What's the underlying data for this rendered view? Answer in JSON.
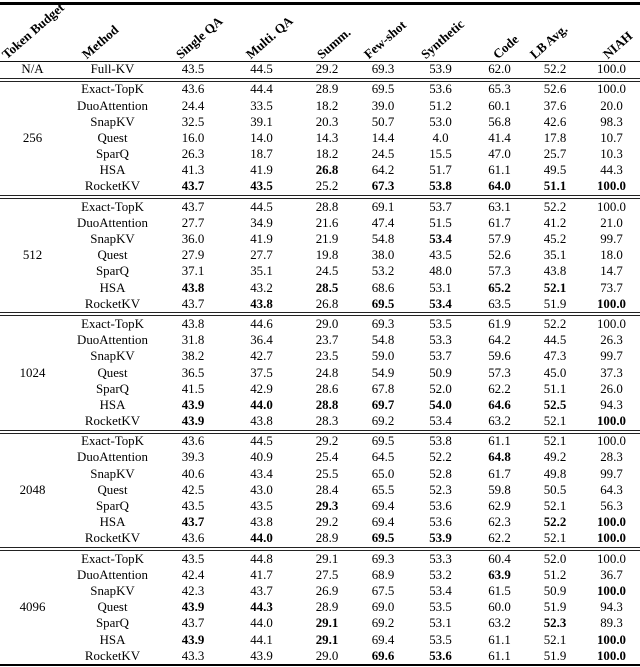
{
  "table": {
    "title": "KV-cache method benchmark results by token budget",
    "columns": [
      "Token Budget",
      "Method",
      "Single QA",
      "Multi. QA",
      "Summ.",
      "Few-shot",
      "Synthetic",
      "Code",
      "LB Avg.",
      "NIAH"
    ],
    "colors": {
      "text": "#000000",
      "background": "#ffffff",
      "rule": "#000000"
    },
    "groups": [
      {
        "budget": "N/A",
        "rows": [
          {
            "method": "Full-KV",
            "values": [
              "43.5",
              "44.5",
              "29.2",
              "69.3",
              "53.9",
              "62.0",
              "52.2",
              "100.0"
            ],
            "bold": [
              0,
              0,
              0,
              0,
              0,
              0,
              0,
              0
            ]
          }
        ]
      },
      {
        "budget": "256",
        "rows": [
          {
            "method": "Exact-TopK",
            "values": [
              "43.6",
              "44.4",
              "28.9",
              "69.5",
              "53.6",
              "65.3",
              "52.6",
              "100.0"
            ],
            "bold": [
              0,
              0,
              0,
              0,
              0,
              0,
              0,
              0
            ]
          },
          {
            "method": "DuoAttention",
            "values": [
              "24.4",
              "33.5",
              "18.2",
              "39.0",
              "51.2",
              "60.1",
              "37.6",
              "20.0"
            ],
            "bold": [
              0,
              0,
              0,
              0,
              0,
              0,
              0,
              0
            ]
          },
          {
            "method": "SnapKV",
            "values": [
              "32.5",
              "39.1",
              "20.3",
              "50.7",
              "53.0",
              "56.8",
              "42.6",
              "98.3"
            ],
            "bold": [
              0,
              0,
              0,
              0,
              0,
              0,
              0,
              0
            ]
          },
          {
            "method": "Quest",
            "values": [
              "16.0",
              "14.0",
              "14.3",
              "14.4",
              "4.0",
              "41.4",
              "17.8",
              "10.7"
            ],
            "bold": [
              0,
              0,
              0,
              0,
              0,
              0,
              0,
              0
            ]
          },
          {
            "method": "SparQ",
            "values": [
              "26.3",
              "18.7",
              "18.2",
              "24.5",
              "15.5",
              "47.0",
              "25.7",
              "10.3"
            ],
            "bold": [
              0,
              0,
              0,
              0,
              0,
              0,
              0,
              0
            ]
          },
          {
            "method": "HSA",
            "values": [
              "41.3",
              "41.9",
              "26.8",
              "64.2",
              "51.7",
              "61.1",
              "49.5",
              "44.3"
            ],
            "bold": [
              0,
              0,
              1,
              0,
              0,
              0,
              0,
              0
            ]
          },
          {
            "method": "RocketKV",
            "values": [
              "43.7",
              "43.5",
              "25.2",
              "67.3",
              "53.8",
              "64.0",
              "51.1",
              "100.0"
            ],
            "bold": [
              1,
              1,
              0,
              1,
              1,
              1,
              1,
              1
            ]
          }
        ]
      },
      {
        "budget": "512",
        "rows": [
          {
            "method": "Exact-TopK",
            "values": [
              "43.7",
              "44.5",
              "28.8",
              "69.1",
              "53.7",
              "63.1",
              "52.2",
              "100.0"
            ],
            "bold": [
              0,
              0,
              0,
              0,
              0,
              0,
              0,
              0
            ]
          },
          {
            "method": "DuoAttention",
            "values": [
              "27.7",
              "34.9",
              "21.6",
              "47.4",
              "51.5",
              "61.7",
              "41.2",
              "21.0"
            ],
            "bold": [
              0,
              0,
              0,
              0,
              0,
              0,
              0,
              0
            ]
          },
          {
            "method": "SnapKV",
            "values": [
              "36.0",
              "41.9",
              "21.9",
              "54.8",
              "53.4",
              "57.9",
              "45.2",
              "99.7"
            ],
            "bold": [
              0,
              0,
              0,
              0,
              1,
              0,
              0,
              0
            ]
          },
          {
            "method": "Quest",
            "values": [
              "27.9",
              "27.7",
              "19.8",
              "38.0",
              "43.5",
              "52.6",
              "35.1",
              "18.0"
            ],
            "bold": [
              0,
              0,
              0,
              0,
              0,
              0,
              0,
              0
            ]
          },
          {
            "method": "SparQ",
            "values": [
              "37.1",
              "35.1",
              "24.5",
              "53.2",
              "48.0",
              "57.3",
              "43.8",
              "14.7"
            ],
            "bold": [
              0,
              0,
              0,
              0,
              0,
              0,
              0,
              0
            ]
          },
          {
            "method": "HSA",
            "values": [
              "43.8",
              "43.2",
              "28.5",
              "68.6",
              "53.1",
              "65.2",
              "52.1",
              "73.7"
            ],
            "bold": [
              1,
              0,
              1,
              0,
              0,
              1,
              1,
              0
            ]
          },
          {
            "method": "RocketKV",
            "values": [
              "43.7",
              "43.8",
              "26.8",
              "69.5",
              "53.4",
              "63.5",
              "51.9",
              "100.0"
            ],
            "bold": [
              0,
              1,
              0,
              1,
              1,
              0,
              0,
              1
            ]
          }
        ]
      },
      {
        "budget": "1024",
        "rows": [
          {
            "method": "Exact-TopK",
            "values": [
              "43.8",
              "44.6",
              "29.0",
              "69.3",
              "53.5",
              "61.9",
              "52.2",
              "100.0"
            ],
            "bold": [
              0,
              0,
              0,
              0,
              0,
              0,
              0,
              0
            ]
          },
          {
            "method": "DuoAttention",
            "values": [
              "31.8",
              "36.4",
              "23.7",
              "54.8",
              "53.3",
              "64.2",
              "44.5",
              "26.3"
            ],
            "bold": [
              0,
              0,
              0,
              0,
              0,
              0,
              0,
              0
            ]
          },
          {
            "method": "SnapKV",
            "values": [
              "38.2",
              "42.7",
              "23.5",
              "59.0",
              "53.7",
              "59.6",
              "47.3",
              "99.7"
            ],
            "bold": [
              0,
              0,
              0,
              0,
              0,
              0,
              0,
              0
            ]
          },
          {
            "method": "Quest",
            "values": [
              "36.5",
              "37.5",
              "24.8",
              "54.9",
              "50.9",
              "57.3",
              "45.0",
              "37.3"
            ],
            "bold": [
              0,
              0,
              0,
              0,
              0,
              0,
              0,
              0
            ]
          },
          {
            "method": "SparQ",
            "values": [
              "41.5",
              "42.9",
              "28.6",
              "67.8",
              "52.0",
              "62.2",
              "51.1",
              "26.0"
            ],
            "bold": [
              0,
              0,
              0,
              0,
              0,
              0,
              0,
              0
            ]
          },
          {
            "method": "HSA",
            "values": [
              "43.9",
              "44.0",
              "28.8",
              "69.7",
              "54.0",
              "64.6",
              "52.5",
              "94.3"
            ],
            "bold": [
              1,
              1,
              1,
              1,
              1,
              1,
              1,
              0
            ]
          },
          {
            "method": "RocketKV",
            "values": [
              "43.9",
              "43.8",
              "28.3",
              "69.2",
              "53.4",
              "63.2",
              "52.1",
              "100.0"
            ],
            "bold": [
              1,
              0,
              0,
              0,
              0,
              0,
              0,
              1
            ]
          }
        ]
      },
      {
        "budget": "2048",
        "rows": [
          {
            "method": "Exact-TopK",
            "values": [
              "43.6",
              "44.5",
              "29.2",
              "69.5",
              "53.8",
              "61.1",
              "52.1",
              "100.0"
            ],
            "bold": [
              0,
              0,
              0,
              0,
              0,
              0,
              0,
              0
            ]
          },
          {
            "method": "DuoAttention",
            "values": [
              "39.3",
              "40.9",
              "25.4",
              "64.5",
              "52.2",
              "64.8",
              "49.2",
              "28.3"
            ],
            "bold": [
              0,
              0,
              0,
              0,
              0,
              1,
              0,
              0
            ]
          },
          {
            "method": "SnapKV",
            "values": [
              "40.6",
              "43.4",
              "25.5",
              "65.0",
              "52.8",
              "61.7",
              "49.8",
              "99.7"
            ],
            "bold": [
              0,
              0,
              0,
              0,
              0,
              0,
              0,
              0
            ]
          },
          {
            "method": "Quest",
            "values": [
              "42.5",
              "43.0",
              "28.4",
              "65.5",
              "52.3",
              "59.8",
              "50.5",
              "64.3"
            ],
            "bold": [
              0,
              0,
              0,
              0,
              0,
              0,
              0,
              0
            ]
          },
          {
            "method": "SparQ",
            "values": [
              "43.5",
              "43.5",
              "29.3",
              "69.4",
              "53.6",
              "62.9",
              "52.1",
              "56.3"
            ],
            "bold": [
              0,
              0,
              1,
              0,
              0,
              0,
              0,
              0
            ]
          },
          {
            "method": "HSA",
            "values": [
              "43.7",
              "43.8",
              "29.2",
              "69.4",
              "53.6",
              "62.3",
              "52.2",
              "100.0"
            ],
            "bold": [
              1,
              0,
              0,
              0,
              0,
              0,
              1,
              1
            ]
          },
          {
            "method": "RocketKV",
            "values": [
              "43.6",
              "44.0",
              "28.9",
              "69.5",
              "53.9",
              "62.2",
              "52.1",
              "100.0"
            ],
            "bold": [
              0,
              1,
              0,
              1,
              1,
              0,
              0,
              1
            ]
          }
        ]
      },
      {
        "budget": "4096",
        "rows": [
          {
            "method": "Exact-TopK",
            "values": [
              "43.5",
              "44.8",
              "29.1",
              "69.3",
              "53.3",
              "60.4",
              "52.0",
              "100.0"
            ],
            "bold": [
              0,
              0,
              0,
              0,
              0,
              0,
              0,
              0
            ]
          },
          {
            "method": "DuoAttention",
            "values": [
              "42.4",
              "41.7",
              "27.5",
              "68.9",
              "53.2",
              "63.9",
              "51.2",
              "36.7"
            ],
            "bold": [
              0,
              0,
              0,
              0,
              0,
              1,
              0,
              0
            ]
          },
          {
            "method": "SnapKV",
            "values": [
              "42.3",
              "43.7",
              "26.9",
              "67.5",
              "53.4",
              "61.5",
              "50.9",
              "100.0"
            ],
            "bold": [
              0,
              0,
              0,
              0,
              0,
              0,
              0,
              1
            ]
          },
          {
            "method": "Quest",
            "values": [
              "43.9",
              "44.3",
              "28.9",
              "69.0",
              "53.5",
              "60.0",
              "51.9",
              "94.3"
            ],
            "bold": [
              1,
              1,
              0,
              0,
              0,
              0,
              0,
              0
            ]
          },
          {
            "method": "SparQ",
            "values": [
              "43.7",
              "44.0",
              "29.1",
              "69.2",
              "53.1",
              "63.2",
              "52.3",
              "89.3"
            ],
            "bold": [
              0,
              0,
              1,
              0,
              0,
              0,
              1,
              0
            ]
          },
          {
            "method": "HSA",
            "values": [
              "43.9",
              "44.1",
              "29.1",
              "69.4",
              "53.5",
              "61.1",
              "52.1",
              "100.0"
            ],
            "bold": [
              1,
              0,
              1,
              0,
              0,
              0,
              0,
              1
            ]
          },
          {
            "method": "RocketKV",
            "values": [
              "43.3",
              "43.9",
              "29.0",
              "69.6",
              "53.6",
              "61.1",
              "51.9",
              "100.0"
            ],
            "bold": [
              0,
              0,
              0,
              1,
              1,
              0,
              0,
              1
            ]
          }
        ]
      }
    ]
  }
}
